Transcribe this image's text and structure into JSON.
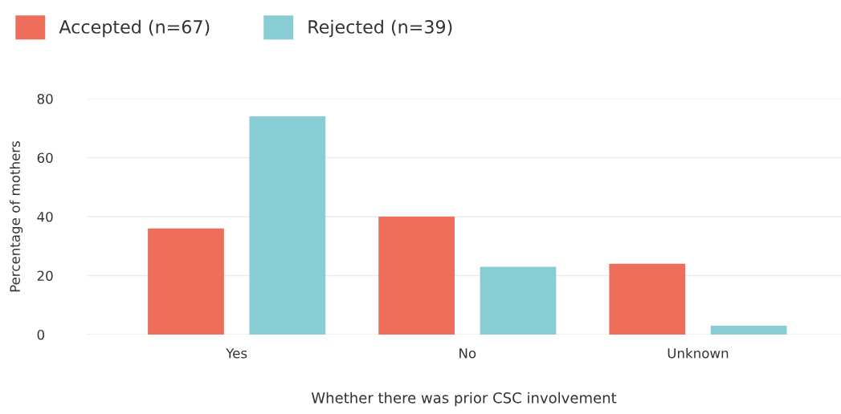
{
  "chart_data": {
    "type": "bar",
    "xlabel": "Whether there was prior CSC involvement",
    "ylabel": "Percentage of mothers",
    "categories": [
      "Yes",
      "No",
      "Unknown"
    ],
    "series": [
      {
        "name": "Accepted (n=67)",
        "color": "#ec6e5b",
        "values": [
          36,
          40,
          24
        ]
      },
      {
        "name": "Rejected (n=39)",
        "color": "#88cdd4",
        "values": [
          74,
          23,
          3
        ]
      }
    ],
    "ylim": [
      0,
      80
    ],
    "yticks": [
      0,
      20,
      40,
      60,
      80
    ],
    "grid": "y",
    "legend": "top left"
  }
}
